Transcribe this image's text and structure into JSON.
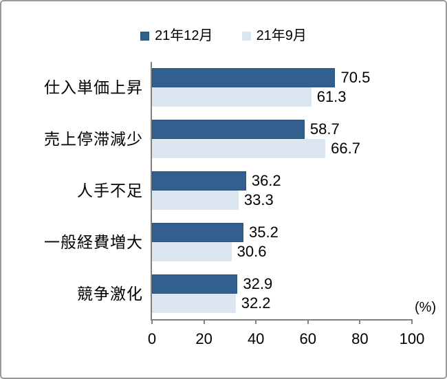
{
  "chart_data": {
    "type": "bar",
    "orientation": "horizontal",
    "title": "",
    "categories": [
      "仕入単価上昇",
      "売上停滞減少",
      "人手不足",
      "一般経費増大",
      "競争激化"
    ],
    "series": [
      {
        "name": "21年12月",
        "color": "#31608F",
        "values": [
          70.5,
          58.7,
          36.2,
          35.2,
          32.9
        ]
      },
      {
        "name": "21年9月",
        "color": "#DCE6F1",
        "values": [
          61.3,
          66.7,
          33.3,
          30.6,
          32.2
        ]
      }
    ],
    "x_ticks": [
      0,
      20,
      40,
      60,
      80,
      100
    ],
    "xlim": [
      0,
      100
    ],
    "unit_label": "(%)",
    "legend_position": "top",
    "grid": false
  },
  "colors": {
    "series1": "#31608F",
    "series1_border": "#2B5179",
    "series2": "#DCE6F1",
    "axis": "#808080",
    "frame_border": "#999999",
    "background": "#FFFFFF",
    "text": "#000000"
  }
}
